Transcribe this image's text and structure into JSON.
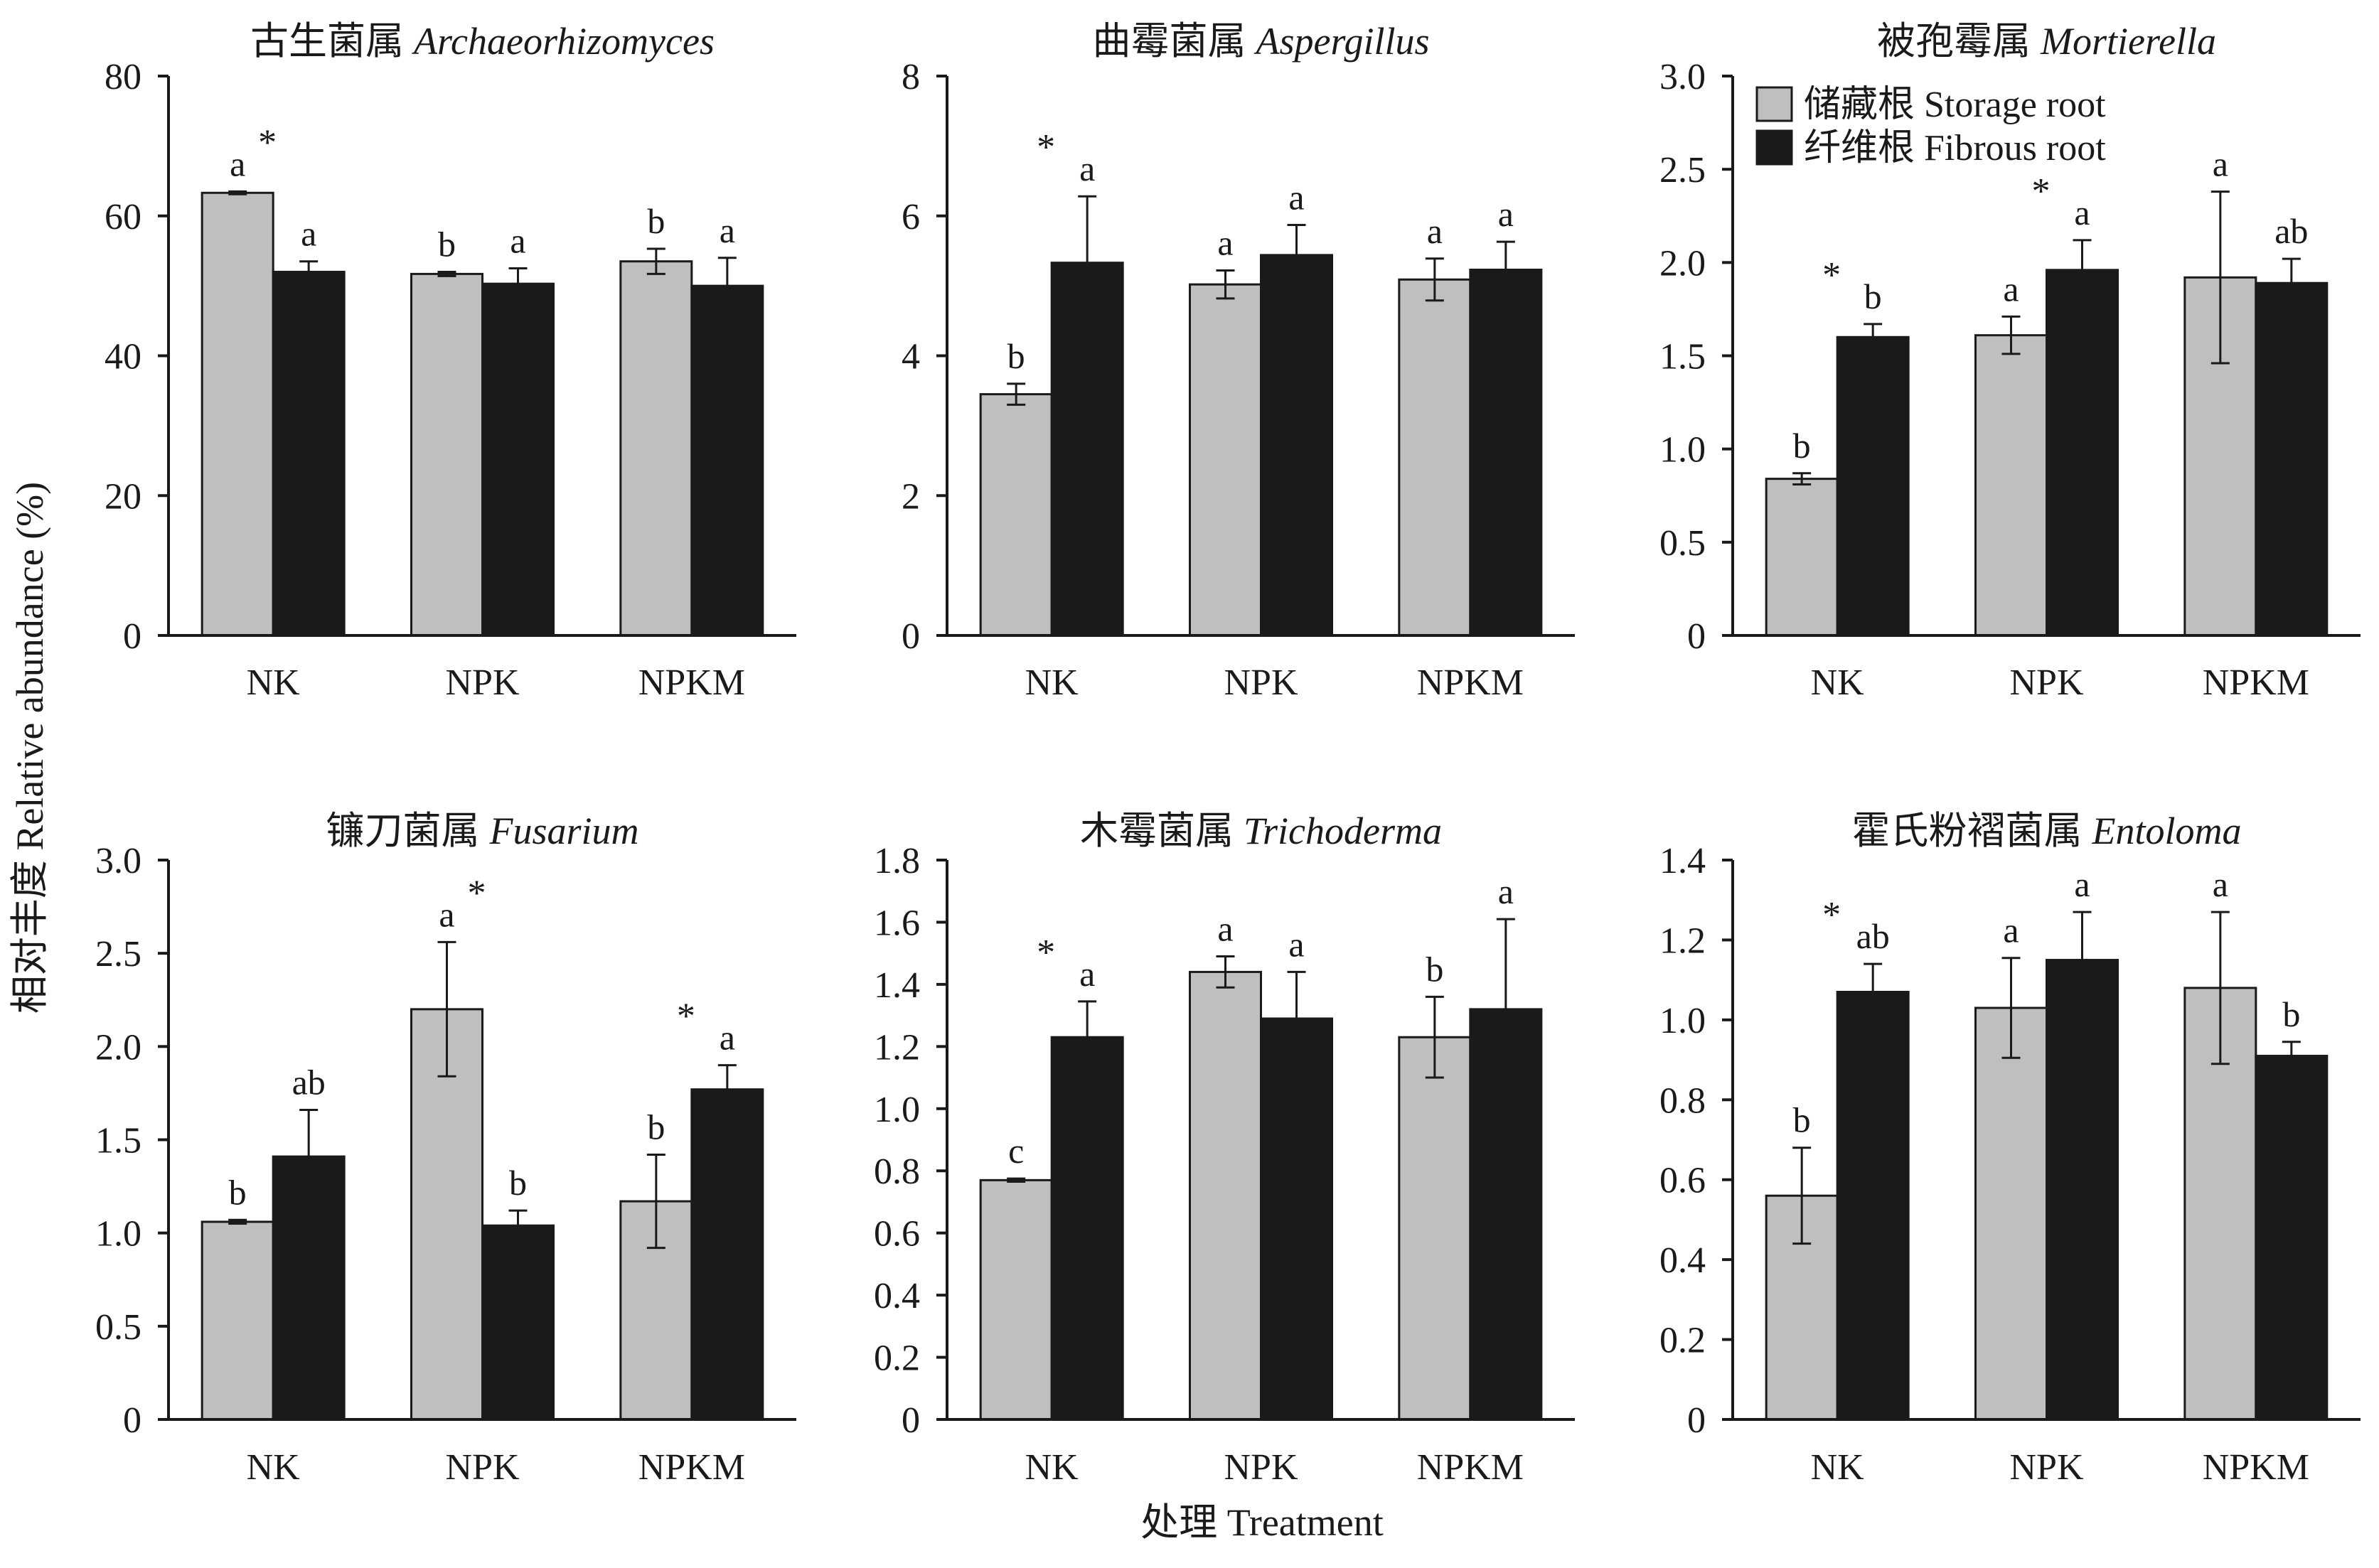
{
  "figure": {
    "ylabel": "相对丰度 Relative abundance (%)",
    "xlabel": "处理 Treatment",
    "significance_marker": "*"
  },
  "legend": {
    "items": [
      {
        "label": "储藏根 Storage root",
        "color": "#bfbfbf"
      },
      {
        "label": "纤维根 Fibrous root",
        "color": "#1a1a1a"
      }
    ]
  },
  "chart_data": [
    {
      "type": "bar",
      "title_cn": "古生菌属",
      "title_genus": "Archaeorhizomyces",
      "categories": [
        "NK",
        "NPK",
        "NPKM"
      ],
      "ylim": [
        0,
        80
      ],
      "yticks": [
        "0",
        "20",
        "40",
        "60",
        "80"
      ],
      "series": [
        {
          "values": [
            63.3,
            51.7,
            53.5
          ],
          "errors": [
            0.2,
            0.3,
            1.8
          ],
          "letters": [
            "a",
            "b",
            "b"
          ]
        },
        {
          "values": [
            52.0,
            50.3,
            50.0
          ],
          "errors": [
            1.5,
            2.2,
            4.0
          ],
          "letters": [
            "a",
            "a",
            "a"
          ]
        }
      ],
      "significant": [
        true,
        false,
        false
      ]
    },
    {
      "type": "bar",
      "title_cn": "曲霉菌属",
      "title_genus": "Aspergillus",
      "categories": [
        "NK",
        "NPK",
        "NPKM"
      ],
      "ylim": [
        0,
        8
      ],
      "yticks": [
        "0",
        "2",
        "4",
        "6",
        "8"
      ],
      "series": [
        {
          "values": [
            3.45,
            5.02,
            5.09
          ],
          "errors": [
            0.15,
            0.2,
            0.3
          ],
          "letters": [
            "b",
            "a",
            "a"
          ]
        },
        {
          "values": [
            5.33,
            5.44,
            5.23
          ],
          "errors": [
            0.95,
            0.43,
            0.4
          ],
          "letters": [
            "a",
            "a",
            "a"
          ]
        }
      ],
      "significant": [
        true,
        false,
        false
      ]
    },
    {
      "type": "bar",
      "title_cn": "被孢霉属",
      "title_genus": "Mortierella",
      "categories": [
        "NK",
        "NPK",
        "NPKM"
      ],
      "ylim": [
        0,
        3.0
      ],
      "yticks": [
        "0",
        "0.5",
        "1.0",
        "1.5",
        "2.0",
        "2.5",
        "3.0"
      ],
      "legend_position": "top-left",
      "series": [
        {
          "values": [
            0.84,
            1.61,
            1.92
          ],
          "errors": [
            0.03,
            0.1,
            0.46
          ],
          "letters": [
            "b",
            "a",
            "a"
          ]
        },
        {
          "values": [
            1.6,
            1.96,
            1.89
          ],
          "errors": [
            0.07,
            0.16,
            0.13
          ],
          "letters": [
            "b",
            "a",
            "ab"
          ]
        }
      ],
      "significant": [
        true,
        true,
        false
      ]
    },
    {
      "type": "bar",
      "title_cn": "镰刀菌属",
      "title_genus": "Fusarium",
      "categories": [
        "NK",
        "NPK",
        "NPKM"
      ],
      "ylim": [
        0,
        3.0
      ],
      "yticks": [
        "0",
        "0.5",
        "1.0",
        "1.5",
        "2.0",
        "2.5",
        "3.0"
      ],
      "series": [
        {
          "values": [
            1.06,
            2.2,
            1.17
          ],
          "errors": [
            0.01,
            0.36,
            0.25
          ],
          "letters": [
            "b",
            "a",
            "b"
          ]
        },
        {
          "values": [
            1.41,
            1.04,
            1.77
          ],
          "errors": [
            0.25,
            0.08,
            0.13
          ],
          "letters": [
            "ab",
            "b",
            "a"
          ]
        }
      ],
      "significant": [
        false,
        true,
        true
      ]
    },
    {
      "type": "bar",
      "title_cn": "木霉菌属",
      "title_genus": "Trichoderma",
      "categories": [
        "NK",
        "NPK",
        "NPKM"
      ],
      "ylim": [
        0,
        1.8
      ],
      "yticks": [
        "0",
        "0.2",
        "0.4",
        "0.6",
        "0.8",
        "1.0",
        "1.2",
        "1.4",
        "1.6",
        "1.8"
      ],
      "series": [
        {
          "values": [
            0.77,
            1.44,
            1.23
          ],
          "errors": [
            0.005,
            0.05,
            0.13
          ],
          "letters": [
            "c",
            "a",
            "b"
          ]
        },
        {
          "values": [
            1.23,
            1.29,
            1.32
          ],
          "errors": [
            0.115,
            0.15,
            0.29
          ],
          "letters": [
            "a",
            "a",
            "a"
          ]
        }
      ],
      "significant": [
        true,
        false,
        false
      ]
    },
    {
      "type": "bar",
      "title_cn": "霍氏粉褶菌属",
      "title_genus": "Entoloma",
      "categories": [
        "NK",
        "NPK",
        "NPKM"
      ],
      "ylim": [
        0,
        1.4
      ],
      "yticks": [
        "0",
        "0.2",
        "0.4",
        "0.6",
        "0.8",
        "1.0",
        "1.2",
        "1.4"
      ],
      "series": [
        {
          "values": [
            0.56,
            1.03,
            1.08
          ],
          "errors": [
            0.12,
            0.125,
            0.19
          ],
          "letters": [
            "b",
            "a",
            "a"
          ]
        },
        {
          "values": [
            1.07,
            1.15,
            0.91
          ],
          "errors": [
            0.07,
            0.12,
            0.035
          ],
          "letters": [
            "ab",
            "a",
            "b"
          ]
        }
      ],
      "significant": [
        true,
        false,
        false
      ]
    }
  ]
}
